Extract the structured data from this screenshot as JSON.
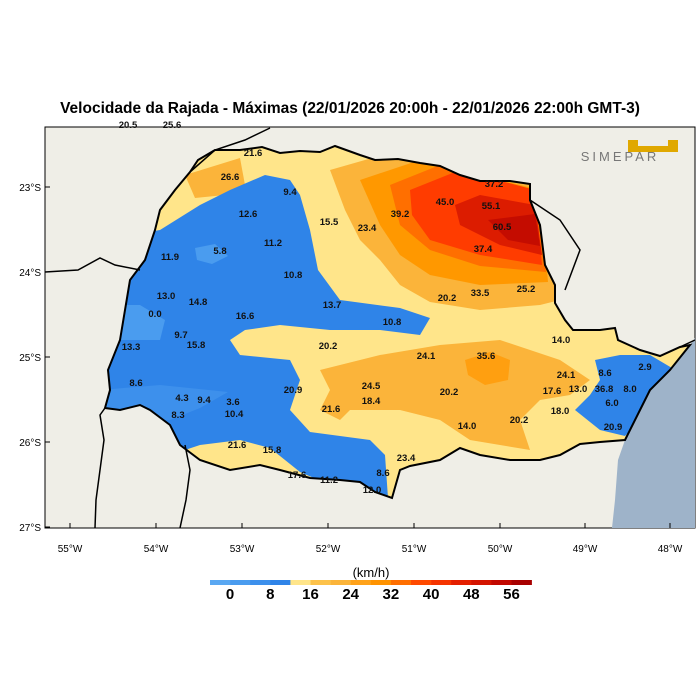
{
  "title": "Velocidade da Rajada - Máximas (22/01/2026 20:00h - 22/01/2026 22:00h GMT-3)",
  "logo_text": "SIMEPAR",
  "lon_ticks": [
    "55°W",
    "54°W",
    "53°W",
    "52°W",
    "51°W",
    "50°W",
    "49°W",
    "48°W"
  ],
  "lat_ticks": [
    "23°S",
    "24°S",
    "25°S",
    "26°S",
    "27°S"
  ],
  "colorbar": {
    "unit": "(km/h)",
    "labels": [
      "0",
      "8",
      "16",
      "24",
      "32",
      "40",
      "48",
      "56"
    ],
    "range": [
      -4,
      60
    ],
    "step": 4,
    "colors": [
      "#5aa8f2",
      "#4a9cef",
      "#3d90ec",
      "#2f84e8",
      "#ffe58a",
      "#fdc24a",
      "#fbb43a",
      "#ffa21a",
      "#ff9300",
      "#ff6f00",
      "#ff4a00",
      "#f53400",
      "#e41f00",
      "#d41400",
      "#c20800",
      "#a80000"
    ]
  },
  "station_values": [
    "20.5",
    "25.6",
    "21.6",
    "26.6",
    "9.4",
    "12.6",
    "15.5",
    "23.4",
    "39.2",
    "45.0",
    "37.2",
    "55.1",
    "60.5",
    "37.4",
    "11.2",
    "5.8",
    "11.9",
    "10.8",
    "13.0",
    "14.8",
    "0.0",
    "16.6",
    "13.7",
    "10.8",
    "20.2",
    "33.5",
    "25.2",
    "14.0",
    "9.7",
    "15.8",
    "13.3",
    "20.2",
    "24.1",
    "35.6",
    "8.6",
    "20.9",
    "24.5",
    "18.4",
    "21.6",
    "4.3",
    "9.4",
    "3.6",
    "10.4",
    "8.3",
    "20.2",
    "14.0",
    "20.2",
    "24.1",
    "13.0",
    "17.6",
    "36.8",
    "8.0",
    "6.0",
    "18.0",
    "8.6",
    "2.9",
    "20.9",
    "21.6",
    "15.8",
    "17.6",
    "11.2",
    "8.6",
    "12.0",
    "23.4"
  ]
}
